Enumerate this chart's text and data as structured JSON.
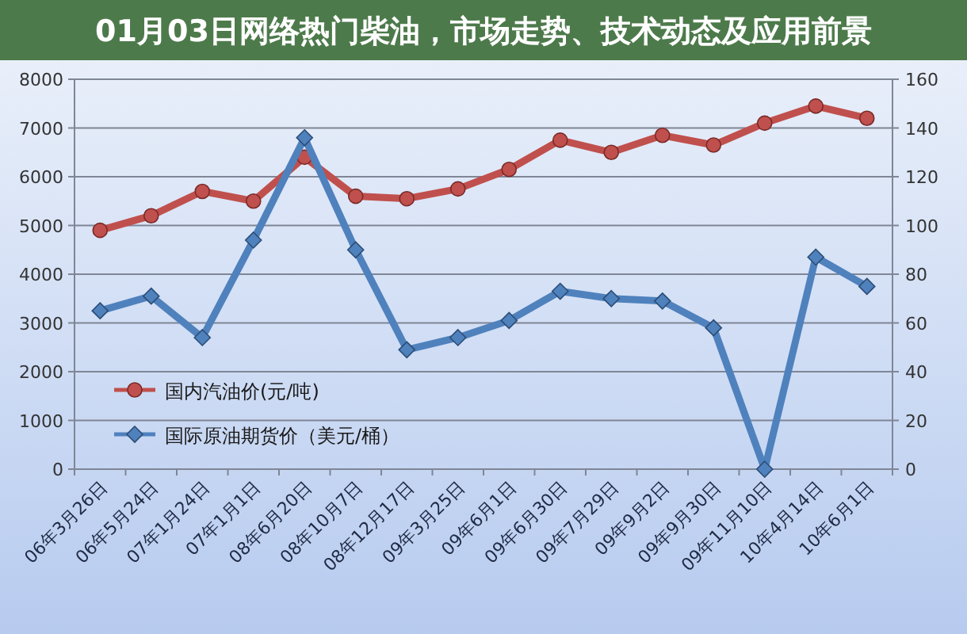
{
  "chart_data": {
    "type": "line",
    "title": "01月03日网络热门柴油，市场走势、技术动态及应用前景",
    "categories": [
      "06年3月26日",
      "06年5月24日",
      "07年1月24日",
      "07年1月1日",
      "08年6月20日",
      "08年10月7日",
      "08年12月17日",
      "09年3月25日",
      "09年6月1日",
      "09年6月30日",
      "09年7月29日",
      "09年9月2日",
      "09年9月30日",
      "09年11月10日",
      "10年4月14日",
      "10年6月1日"
    ],
    "series": [
      {
        "name": "国内汽油价(元/吨)",
        "color": "#c0504d",
        "marker": "circle",
        "values": [
          4900,
          5200,
          5700,
          5500,
          6400,
          5600,
          5550,
          5750,
          6150,
          6750,
          6500,
          6850,
          6650,
          7100,
          7450,
          7200
        ]
      },
      {
        "name": "国际原油期货价（美元/桶）",
        "color": "#4f81bd",
        "marker": "diamond",
        "axis": "y2",
        "values": [
          65,
          71,
          54,
          94,
          136,
          90,
          49,
          54,
          61,
          73,
          70,
          69,
          58,
          0,
          87,
          75
        ]
      }
    ],
    "ylim": [
      0,
      8000
    ],
    "yticks": [
      0,
      1000,
      2000,
      3000,
      4000,
      5000,
      6000,
      7000,
      8000
    ],
    "y2lim": [
      0,
      160
    ],
    "y2ticks": [
      0,
      20,
      40,
      60,
      80,
      100,
      120,
      140,
      160
    ],
    "grid": "y",
    "legend": "bottom left"
  }
}
